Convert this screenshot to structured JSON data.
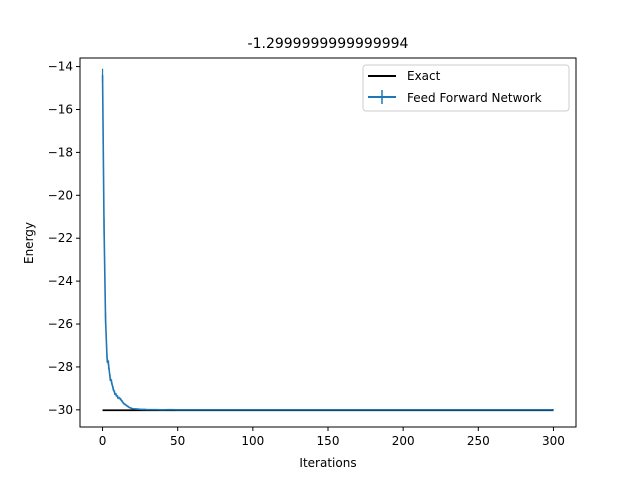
{
  "chart_data": {
    "type": "line",
    "title": "-1.2999999999999994",
    "xlabel": "Iterations",
    "ylabel": "Energy",
    "xlim": [
      -15,
      315
    ],
    "ylim": [
      -30.8,
      -13.6
    ],
    "xticks": [
      0,
      50,
      100,
      150,
      200,
      250,
      300
    ],
    "yticks": [
      -30,
      -28,
      -26,
      -24,
      -22,
      -20,
      -18,
      -16,
      -14
    ],
    "grid": false,
    "legend_position": "top-right",
    "colors": {
      "exact": "#000000",
      "network": "#1f77b4"
    },
    "series": [
      {
        "name": "Exact",
        "x": [
          0,
          300
        ],
        "y": [
          -30.02,
          -30.02
        ]
      },
      {
        "name": "Feed Forward Network",
        "error_bars": true,
        "x": [
          0,
          1,
          2,
          3,
          4,
          5,
          6,
          7,
          8,
          9,
          10,
          11,
          12,
          13,
          14,
          15,
          16,
          17,
          18,
          19,
          20,
          22,
          24,
          26,
          28,
          30,
          35,
          40,
          45,
          50,
          60,
          70,
          80,
          90,
          100,
          125,
          150,
          175,
          200,
          225,
          250,
          275,
          300
        ],
        "y": [
          -14.4,
          -21.5,
          -25.8,
          -27.6,
          -27.9,
          -28.5,
          -28.7,
          -29.0,
          -29.2,
          -29.3,
          -29.4,
          -29.45,
          -29.5,
          -29.6,
          -29.7,
          -29.75,
          -29.8,
          -29.85,
          -29.9,
          -29.92,
          -29.95,
          -29.96,
          -29.97,
          -29.98,
          -29.98,
          -29.99,
          -29.99,
          -30.0,
          -29.99,
          -30.0,
          -30.0,
          -30.0,
          -30.0,
          -30.0,
          -30.0,
          -30.0,
          -30.0,
          -30.0,
          -30.0,
          -30.0,
          -30.0,
          -30.0,
          -30.0
        ],
        "err": [
          0.3,
          0.4,
          0.3,
          0.2,
          0.2,
          0.15,
          0.12,
          0.1,
          0.1,
          0.08,
          0.08,
          0.06,
          0.06,
          0.05,
          0.05,
          0.04,
          0.04,
          0.04,
          0.03,
          0.03,
          0.03,
          0.03,
          0.02,
          0.02,
          0.02,
          0.02,
          0.02,
          0.02,
          0.02,
          0.02,
          0.02,
          0.02,
          0.02,
          0.02,
          0.02,
          0.02,
          0.02,
          0.02,
          0.02,
          0.02,
          0.02,
          0.02,
          0.02
        ]
      }
    ]
  }
}
